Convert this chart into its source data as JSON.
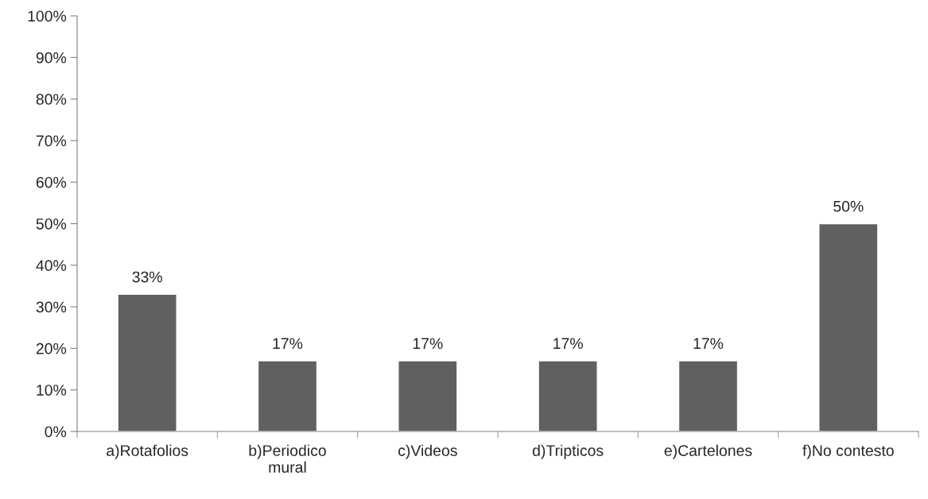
{
  "chart_data": {
    "type": "bar",
    "categories": [
      "a)Rotafolios",
      "b)Periodico\nmural",
      "c)Videos",
      "d)Tripticos",
      "e)Cartelones",
      "f)No contesto"
    ],
    "values": [
      33,
      17,
      17,
      17,
      17,
      50
    ],
    "value_labels": [
      "33%",
      "17%",
      "17%",
      "17%",
      "17%",
      "50%"
    ],
    "color": "#606060",
    "ylim": [
      0,
      100
    ],
    "yticks": [
      {
        "value": 0,
        "label": "0%"
      },
      {
        "value": 10,
        "label": "10%"
      },
      {
        "value": 20,
        "label": "20%"
      },
      {
        "value": 30,
        "label": "30%"
      },
      {
        "value": 40,
        "label": "40%"
      },
      {
        "value": 50,
        "label": "50%"
      },
      {
        "value": 60,
        "label": "60%"
      },
      {
        "value": 70,
        "label": "70%"
      },
      {
        "value": 80,
        "label": "80%"
      },
      {
        "value": 90,
        "label": "90%"
      },
      {
        "value": 100,
        "label": "100%"
      }
    ],
    "grid": false,
    "legend": false
  }
}
